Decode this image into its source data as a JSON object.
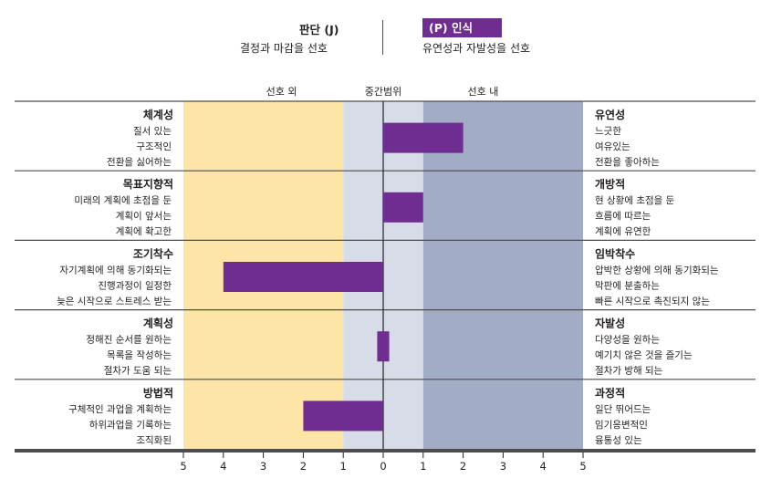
{
  "header": {
    "left_title": "판단 (J)",
    "left_subtitle": "결정과 마감을 선호",
    "right_title": "(P) 인식",
    "right_subtitle": "유연성과 자발성을 선호"
  },
  "zones": {
    "out_of_preference": "선호 외",
    "midrange": "중간범위",
    "in_preference": "선호 내"
  },
  "colors": {
    "bar": "#6f2c91",
    "left_zone": "#fce5a6",
    "mid_zone": "#d8dbe8",
    "right_zone": "#a2acc7",
    "badge": "#6f2c91",
    "line": "#4d4d4d"
  },
  "chart_data": {
    "type": "bar",
    "orientation": "horizontal-diverging",
    "xlim": [
      -5,
      5
    ],
    "tick_labels": [
      "5",
      "4",
      "3",
      "2",
      "1",
      "0",
      "1",
      "2",
      "3",
      "4",
      "5"
    ],
    "categories": [
      {
        "left_title": "체계성",
        "left_items": [
          "질서 있는",
          "구조적인",
          "전환을 싫어하는"
        ],
        "right_title": "유연성",
        "right_items": [
          "느긋한",
          "여유있는",
          "전환을 좋아하는"
        ],
        "value": 2
      },
      {
        "left_title": "목표지향적",
        "left_items": [
          "미래의 계획에 초점을 둔",
          "계획이 앞서는",
          "계획에 확고한"
        ],
        "right_title": "개방적",
        "right_items": [
          "현 상황에 초점을 둔",
          "흐름에 따르는",
          "계획에 유연한"
        ],
        "value": 1
      },
      {
        "left_title": "조기착수",
        "left_items": [
          "자기계획에 의해 동기화되는",
          "진행과정이 일정한",
          "늦은 시작으로 스트레스 받는"
        ],
        "right_title": "임박착수",
        "right_items": [
          "압박한 상황에 의해 동기화되는",
          "막판에 분출하는",
          "빠른 시작으로 촉진되지 않는"
        ],
        "value": -4
      },
      {
        "left_title": "계획성",
        "left_items": [
          "정해진 순서를 원하는",
          "목록을 작성하는",
          "절차가 도움 되는"
        ],
        "right_title": "자발성",
        "right_items": [
          "다양성을 원하는",
          "예기치 않은 것을 즐기는",
          "절차가 방해 되는"
        ],
        "value": 0.15,
        "value_from": -0.15
      },
      {
        "left_title": "방법적",
        "left_items": [
          "구체적인 과업을 계획하는",
          "하위과업을 기록하는",
          "조직화된"
        ],
        "right_title": "과정적",
        "right_items": [
          "일단 뛰어드는",
          "임기응변적인",
          "융통성 있는"
        ],
        "value": -2
      }
    ]
  }
}
